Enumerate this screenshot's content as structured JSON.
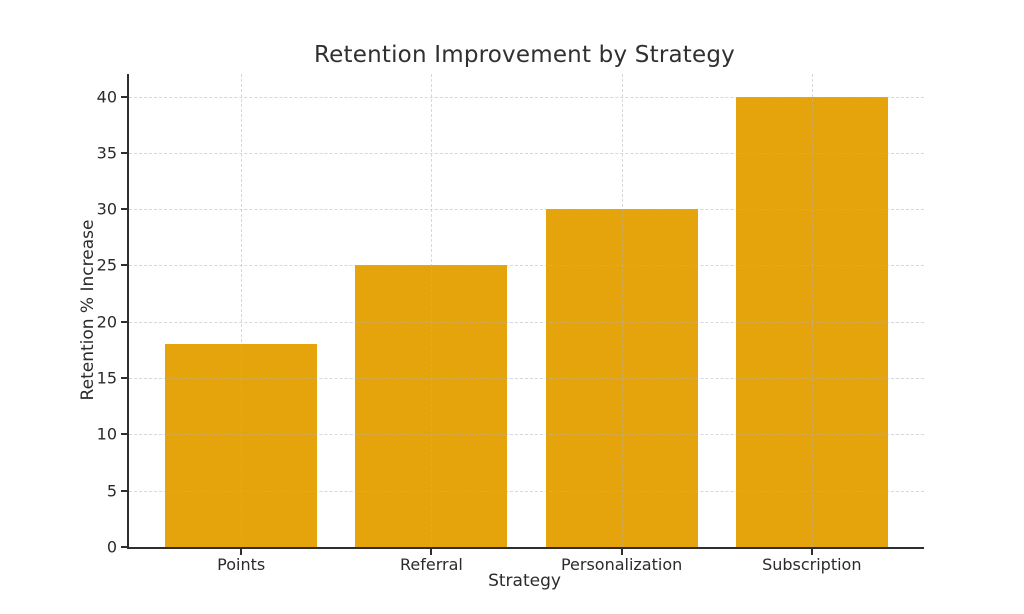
{
  "figure": {
    "background": "#ffffff"
  },
  "chart_data": {
    "type": "bar",
    "title": "Retention Improvement by Strategy",
    "xlabel": "Strategy",
    "ylabel": "Retention % Increase",
    "categories": [
      "Points",
      "Referral",
      "Personalization",
      "Subscription"
    ],
    "values": [
      18,
      25,
      30,
      40
    ],
    "yticks": [
      0,
      5,
      10,
      15,
      20,
      25,
      30,
      35,
      40
    ],
    "ylim": [
      0,
      42
    ],
    "grid": true,
    "grid_style": "dashed",
    "legend": "none",
    "bar_color": "#E5A40C",
    "axis_color": "#2e2e2e",
    "grid_color": "rgba(178,178,178,0.5)",
    "text_color": "#2b2b2b",
    "bar_width_fraction": 0.8,
    "x_edge_pad_fraction": 0.09
  }
}
